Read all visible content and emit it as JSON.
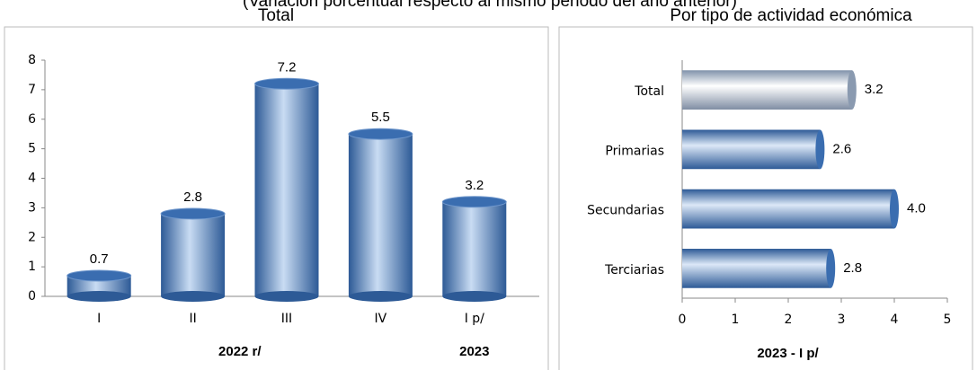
{
  "subtitle": "(Variación porcentual respecto al mismo periodo del año anterior)",
  "chart_data": [
    {
      "type": "bar",
      "title": "Total",
      "categories": [
        "I",
        "II",
        "III",
        "IV",
        "I p/"
      ],
      "values": [
        0.7,
        2.8,
        7.2,
        5.5,
        3.2
      ],
      "value_labels": [
        "0.7",
        "2.8",
        "7.2",
        "5.5",
        "3.2"
      ],
      "groups": [
        {
          "label": "2022 r/",
          "categories": [
            0,
            3
          ]
        },
        {
          "label": "2023",
          "categories": [
            4,
            4
          ]
        }
      ],
      "color": "#4f81bd",
      "ylim": [
        0,
        8
      ],
      "yticks": [
        0,
        1,
        2,
        3,
        4,
        5,
        6,
        7,
        8
      ]
    },
    {
      "type": "hbar",
      "title": "Por tipo de actividad económica",
      "categories": [
        "Total",
        "Primarias",
        "Secundarias",
        "Terciarias"
      ],
      "values": [
        3.2,
        2.6,
        4.0,
        2.8
      ],
      "value_labels": [
        "3.2",
        "2.6",
        "4.0",
        "2.8"
      ],
      "colors": [
        "#9aaec8",
        "#4f81bd",
        "#4f81bd",
        "#4f81bd"
      ],
      "xlabel": "2023 - I p/",
      "xlim": [
        0,
        5
      ],
      "xticks": [
        0,
        1,
        2,
        3,
        4,
        5
      ]
    }
  ]
}
